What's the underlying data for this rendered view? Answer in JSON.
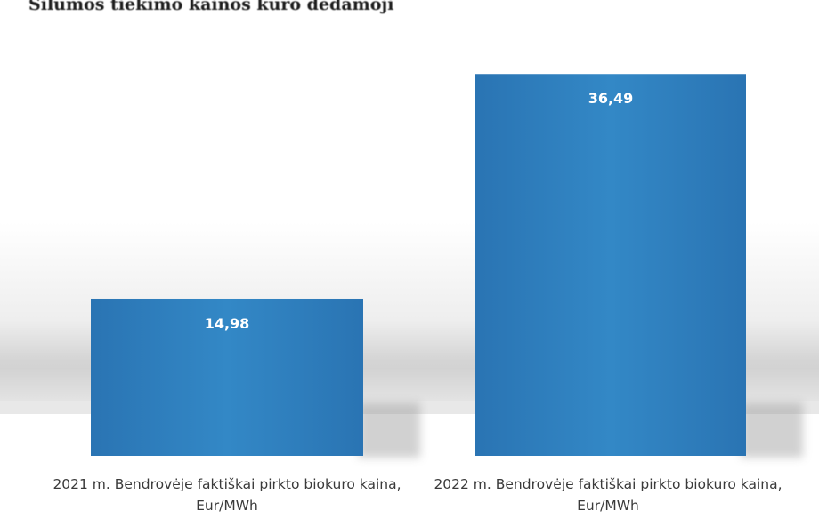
{
  "page": {
    "heading": "Šilumos tiekimo kainos kuro dedamoji"
  },
  "chart_data": {
    "type": "bar",
    "categories": [
      "2021 m. Bendrovėje faktiškai pirkto biokuro kaina, Eur/MWh",
      "2022 m. Bendrovėje faktiškai pirkto biokuro kaina, Eur/MWh"
    ],
    "values": [
      14.98,
      36.49
    ],
    "data_labels": [
      "14,98",
      "36,49"
    ],
    "title": "",
    "xlabel": "",
    "ylabel": "",
    "ylim": [
      0,
      40
    ],
    "grid": false,
    "legend": "none",
    "colors": {
      "bar": "#2f7fbe",
      "bar_dark": "#2470ad",
      "label": "#ffffff"
    }
  }
}
